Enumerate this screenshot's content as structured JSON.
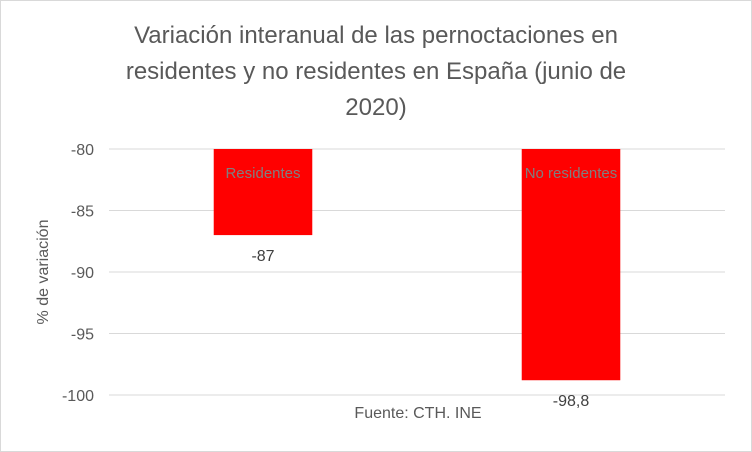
{
  "chart_data": {
    "type": "bar",
    "title_lines": [
      "Variación interanual de las pernoctaciones en",
      "residentes y no residentes en España (junio de",
      "2020)"
    ],
    "ylabel": "% de variación",
    "xlabel": "",
    "categories": [
      "Residentes",
      "No residentes"
    ],
    "values": [
      -87,
      -98.8
    ],
    "data_labels": [
      "-87",
      "-98,8"
    ],
    "ylim": [
      -100,
      -80
    ],
    "yticks": [
      -80,
      -85,
      -90,
      -95,
      -100
    ],
    "grid": true,
    "bar_color": "#ff0000",
    "source": "Fuente: CTH. INE"
  }
}
